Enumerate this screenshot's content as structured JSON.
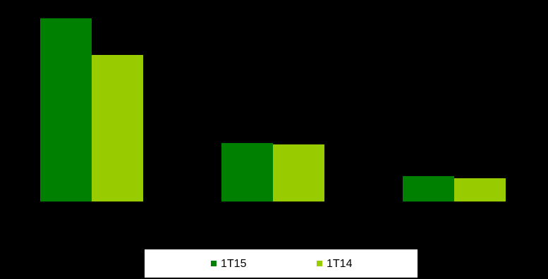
{
  "chart_data": {
    "type": "bar",
    "categories": [
      null,
      null,
      null
    ],
    "series": [
      {
        "name": "1T15",
        "color": "#008000",
        "values": [
          260,
          83,
          36
        ]
      },
      {
        "name": "1T14",
        "color": "#99cc00",
        "values": [
          208,
          81,
          33
        ]
      }
    ]
  }
}
